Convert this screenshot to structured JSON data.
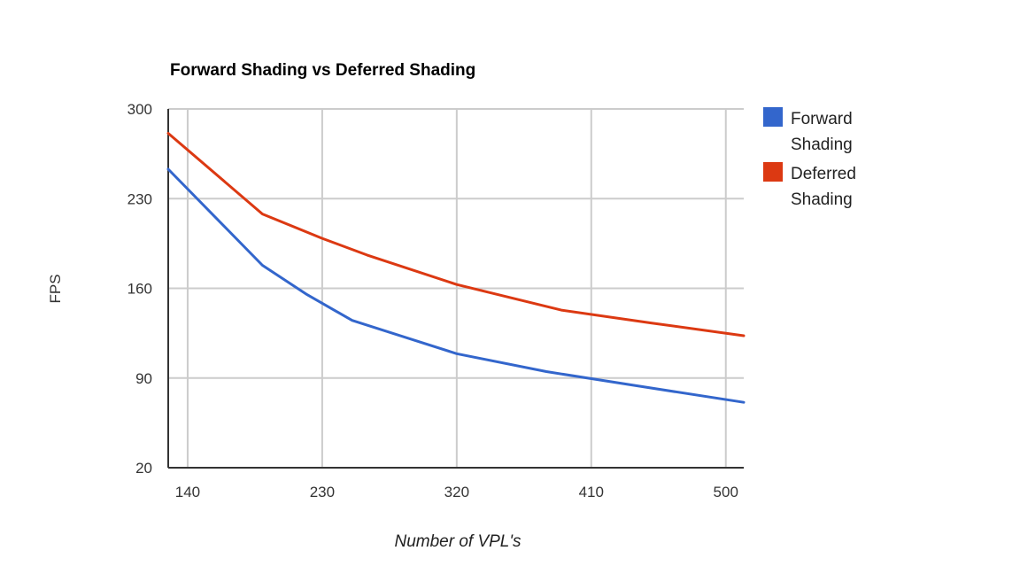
{
  "chart_data": {
    "type": "line",
    "title": "Forward Shading vs Deferred Shading",
    "xlabel": "Number of VPL's",
    "ylabel": "FPS",
    "x_ticks": [
      140,
      230,
      320,
      410,
      500
    ],
    "y_ticks": [
      20,
      90,
      160,
      230,
      300
    ],
    "xlim": [
      127,
      512
    ],
    "ylim": [
      20,
      300
    ],
    "grid": true,
    "legend_position": "right",
    "series": [
      {
        "name_lines": [
          "Forward",
          "Shading"
        ],
        "color": "#3366cc",
        "points": [
          [
            127,
            253
          ],
          [
            190,
            178
          ],
          [
            220,
            155
          ],
          [
            250,
            135
          ],
          [
            320,
            109
          ],
          [
            380,
            95
          ],
          [
            440,
            84
          ],
          [
            512,
            71
          ]
        ]
      },
      {
        "name_lines": [
          "Deferred",
          "Shading"
        ],
        "color": "#dc3912",
        "points": [
          [
            127,
            281
          ],
          [
            190,
            218
          ],
          [
            230,
            199
          ],
          [
            260,
            186
          ],
          [
            320,
            163
          ],
          [
            390,
            143
          ],
          [
            450,
            133
          ],
          [
            512,
            123
          ]
        ]
      }
    ]
  }
}
